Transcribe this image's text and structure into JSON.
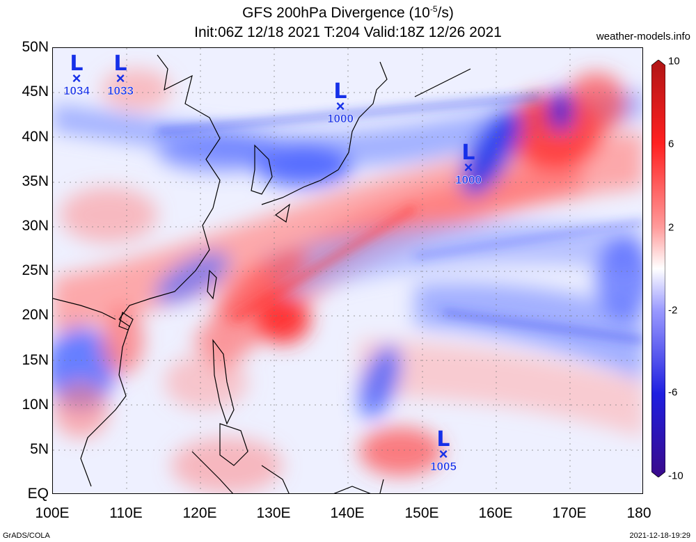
{
  "header": {
    "title_main": "GFS 200hPa Divergence (10",
    "title_exp": "-5",
    "title_unit": "/s)",
    "subtitle": "Init:06Z 12/18 2021 T:204 Valid:18Z 12/26 2021",
    "site": "weather-models.info"
  },
  "axes": {
    "lat_labels": [
      "50N",
      "45N",
      "40N",
      "35N",
      "30N",
      "25N",
      "20N",
      "15N",
      "10N",
      "5N",
      "EQ"
    ],
    "lon_labels": [
      "100E",
      "110E",
      "120E",
      "130E",
      "140E",
      "150E",
      "160E",
      "170E",
      "180"
    ]
  },
  "colorbar": {
    "labels": [
      "10",
      "6",
      "2",
      "-2",
      "-6",
      "-10"
    ],
    "colors": [
      "#b01515",
      "#ff2020",
      "#ff9a9a",
      "#ffffff",
      "#9a9aff",
      "#1f1fe0",
      "#3a0a8a"
    ]
  },
  "lows": [
    {
      "label": "L",
      "pressure": "1034"
    },
    {
      "label": "L",
      "pressure": "1033"
    },
    {
      "label": "L",
      "pressure": "1000"
    },
    {
      "label": "L",
      "pressure": "1000"
    },
    {
      "label": "L",
      "pressure": "1005"
    }
  ],
  "footer": {
    "left": "GrADS/COLA",
    "right": "2021-12-18-19:29"
  }
}
